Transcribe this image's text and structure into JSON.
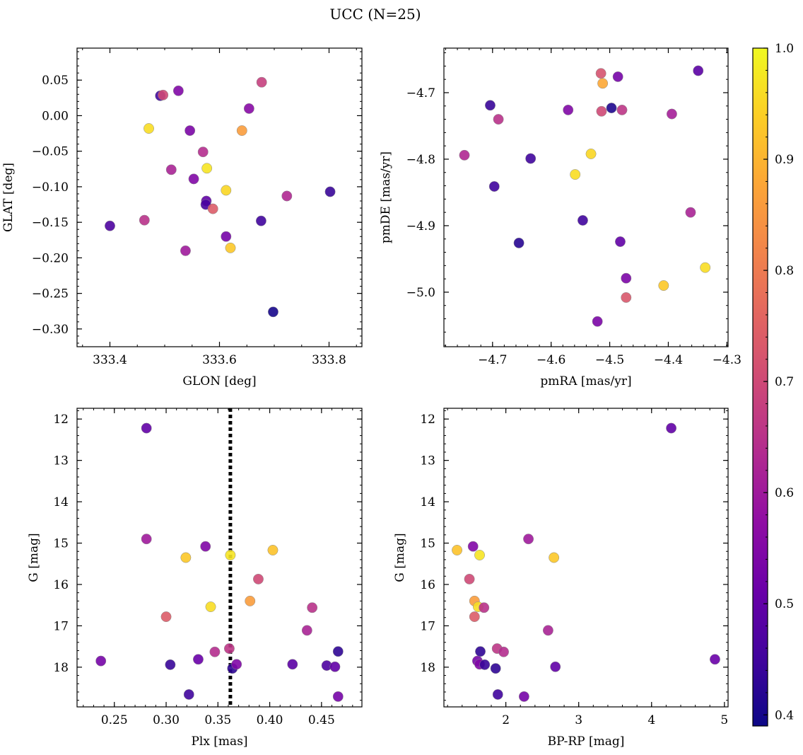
{
  "figure": {
    "title": "UCC (N=25)"
  },
  "colorbar": {
    "colormap": "plasma",
    "range": [
      0.39,
      1.0
    ],
    "ticks": [
      "0.4",
      "0.5",
      "0.6",
      "0.7",
      "0.8",
      "0.9",
      "1.0"
    ]
  },
  "chart_data": [
    {
      "type": "scatter",
      "panel": "top-left",
      "xlabel": "GLON [deg]",
      "ylabel": "GLAT [deg]",
      "xlim": [
        333.34,
        333.86
      ],
      "ylim": [
        -0.325,
        0.095
      ],
      "xticks": [
        333.4,
        333.6,
        333.8
      ],
      "xtick_labels": [
        "333.4",
        "333.6",
        "333.8"
      ],
      "yticks": [
        0.05,
        0.0,
        -0.05,
        -0.1,
        -0.15,
        -0.2,
        -0.25,
        -0.3
      ],
      "ytick_labels": [
        "0.05",
        "0.00",
        "−0.05",
        "−0.10",
        "−0.15",
        "−0.20",
        "−0.25",
        "−0.30"
      ],
      "points": [
        {
          "x": 333.4,
          "y": -0.155,
          "c": 0.47
        },
        {
          "x": 333.463,
          "y": -0.147,
          "c": 0.65
        },
        {
          "x": 333.471,
          "y": -0.018,
          "c": 0.96
        },
        {
          "x": 333.492,
          "y": 0.028,
          "c": 0.45
        },
        {
          "x": 333.497,
          "y": 0.029,
          "c": 0.7
        },
        {
          "x": 333.512,
          "y": -0.076,
          "c": 0.62
        },
        {
          "x": 333.525,
          "y": 0.035,
          "c": 0.55
        },
        {
          "x": 333.538,
          "y": -0.19,
          "c": 0.6
        },
        {
          "x": 333.546,
          "y": -0.021,
          "c": 0.54
        },
        {
          "x": 333.553,
          "y": -0.089,
          "c": 0.55
        },
        {
          "x": 333.57,
          "y": -0.051,
          "c": 0.64
        },
        {
          "x": 333.576,
          "y": -0.12,
          "c": 0.5
        },
        {
          "x": 333.575,
          "y": -0.125,
          "c": 0.46
        },
        {
          "x": 333.577,
          "y": -0.074,
          "c": 0.97
        },
        {
          "x": 333.588,
          "y": -0.131,
          "c": 0.74
        },
        {
          "x": 333.612,
          "y": -0.105,
          "c": 0.95
        },
        {
          "x": 333.612,
          "y": -0.17,
          "c": 0.53
        },
        {
          "x": 333.62,
          "y": -0.186,
          "c": 0.93
        },
        {
          "x": 333.641,
          "y": -0.021,
          "c": 0.86
        },
        {
          "x": 333.654,
          "y": 0.01,
          "c": 0.56
        },
        {
          "x": 333.676,
          "y": -0.148,
          "c": 0.45
        },
        {
          "x": 333.677,
          "y": 0.047,
          "c": 0.68
        },
        {
          "x": 333.698,
          "y": -0.276,
          "c": 0.4
        },
        {
          "x": 333.723,
          "y": -0.113,
          "c": 0.63
        },
        {
          "x": 333.802,
          "y": -0.107,
          "c": 0.44
        }
      ]
    },
    {
      "type": "scatter",
      "panel": "top-right",
      "xlabel": "pmRA [mas/yr]",
      "ylabel": "pmDE [mas/yr]",
      "xlim": [
        -4.783,
        -4.298
      ],
      "ylim": [
        -5.082,
        -4.633
      ],
      "xticks": [
        -4.7,
        -4.6,
        -4.5,
        -4.4,
        -4.3
      ],
      "xtick_labels": [
        "−4.7",
        "−4.6",
        "−4.5",
        "−4.4",
        "−4.3"
      ],
      "yticks": [
        -4.7,
        -4.8,
        -4.9,
        -5.0
      ],
      "ytick_labels": [
        "−4.7",
        "−4.8",
        "−4.9",
        "−5.0"
      ],
      "points": [
        {
          "x": -4.748,
          "y": -4.794,
          "c": 0.63
        },
        {
          "x": -4.704,
          "y": -4.719,
          "c": 0.44
        },
        {
          "x": -4.697,
          "y": -4.841,
          "c": 0.45
        },
        {
          "x": -4.69,
          "y": -4.74,
          "c": 0.65
        },
        {
          "x": -4.655,
          "y": -4.926,
          "c": 0.42
        },
        {
          "x": -4.635,
          "y": -4.799,
          "c": 0.45
        },
        {
          "x": -4.571,
          "y": -4.726,
          "c": 0.55
        },
        {
          "x": -4.559,
          "y": -4.823,
          "c": 0.96
        },
        {
          "x": -4.532,
          "y": -4.792,
          "c": 0.95
        },
        {
          "x": -4.521,
          "y": -5.044,
          "c": 0.54
        },
        {
          "x": -4.515,
          "y": -4.671,
          "c": 0.72
        },
        {
          "x": -4.514,
          "y": -4.728,
          "c": 0.7
        },
        {
          "x": -4.512,
          "y": -4.686,
          "c": 0.88
        },
        {
          "x": -4.497,
          "y": -4.723,
          "c": 0.41
        },
        {
          "x": -4.546,
          "y": -4.892,
          "c": 0.45
        },
        {
          "x": -4.486,
          "y": -4.676,
          "c": 0.53
        },
        {
          "x": -4.482,
          "y": -4.924,
          "c": 0.5
        },
        {
          "x": -4.479,
          "y": -4.726,
          "c": 0.66
        },
        {
          "x": -4.472,
          "y": -4.979,
          "c": 0.54
        },
        {
          "x": -4.472,
          "y": -5.008,
          "c": 0.73
        },
        {
          "x": -4.408,
          "y": -4.99,
          "c": 0.93
        },
        {
          "x": -4.394,
          "y": -4.732,
          "c": 0.61
        },
        {
          "x": -4.362,
          "y": -4.88,
          "c": 0.62
        },
        {
          "x": -4.349,
          "y": -4.667,
          "c": 0.49
        },
        {
          "x": -4.337,
          "y": -4.963,
          "c": 0.96
        }
      ]
    },
    {
      "type": "scatter",
      "panel": "bottom-left",
      "xlabel": "Plx [mas]",
      "ylabel": "G [mag]",
      "xlim": [
        0.214,
        0.489
      ],
      "ylim": [
        18.96,
        11.74
      ],
      "invert_y": true,
      "xticks": [
        0.25,
        0.3,
        0.35,
        0.4,
        0.45
      ],
      "xtick_labels": [
        "0.25",
        "0.30",
        "0.35",
        "0.40",
        "0.45"
      ],
      "yticks": [
        12,
        13,
        14,
        15,
        16,
        17,
        18
      ],
      "ytick_labels": [
        "12",
        "13",
        "14",
        "15",
        "16",
        "17",
        "18"
      ],
      "vline": {
        "x": 0.362,
        "style": "dotted",
        "color": "#000000"
      },
      "points": [
        {
          "x": 0.237,
          "y": 17.85,
          "c": 0.53
        },
        {
          "x": 0.281,
          "y": 12.22,
          "c": 0.5
        },
        {
          "x": 0.281,
          "y": 14.9,
          "c": 0.6
        },
        {
          "x": 0.3,
          "y": 16.78,
          "c": 0.74
        },
        {
          "x": 0.304,
          "y": 17.94,
          "c": 0.44
        },
        {
          "x": 0.319,
          "y": 15.35,
          "c": 0.93
        },
        {
          "x": 0.322,
          "y": 18.66,
          "c": 0.45
        },
        {
          "x": 0.331,
          "y": 17.81,
          "c": 0.51
        },
        {
          "x": 0.338,
          "y": 15.08,
          "c": 0.55
        },
        {
          "x": 0.343,
          "y": 16.54,
          "c": 0.96
        },
        {
          "x": 0.347,
          "y": 17.63,
          "c": 0.64
        },
        {
          "x": 0.361,
          "y": 17.55,
          "c": 0.66
        },
        {
          "x": 0.362,
          "y": 15.29,
          "c": 0.97
        },
        {
          "x": 0.364,
          "y": 18.03,
          "c": 0.43
        },
        {
          "x": 0.368,
          "y": 17.93,
          "c": 0.55
        },
        {
          "x": 0.381,
          "y": 16.4,
          "c": 0.86
        },
        {
          "x": 0.389,
          "y": 15.87,
          "c": 0.7
        },
        {
          "x": 0.403,
          "y": 15.17,
          "c": 0.92
        },
        {
          "x": 0.422,
          "y": 17.93,
          "c": 0.49
        },
        {
          "x": 0.436,
          "y": 17.11,
          "c": 0.62
        },
        {
          "x": 0.441,
          "y": 16.56,
          "c": 0.65
        },
        {
          "x": 0.455,
          "y": 17.96,
          "c": 0.47
        },
        {
          "x": 0.463,
          "y": 17.99,
          "c": 0.5
        },
        {
          "x": 0.466,
          "y": 17.62,
          "c": 0.43
        },
        {
          "x": 0.466,
          "y": 18.71,
          "c": 0.53
        }
      ]
    },
    {
      "type": "scatter",
      "panel": "bottom-right",
      "xlabel": "BP-RP [mag]",
      "ylabel": "G [mag]",
      "xlim": [
        1.15,
        5.05
      ],
      "ylim": [
        18.96,
        11.74
      ],
      "invert_y": true,
      "xticks": [
        2,
        3,
        4,
        5
      ],
      "xtick_labels": [
        "2",
        "3",
        "4",
        "5"
      ],
      "yticks": [
        12,
        13,
        14,
        15,
        16,
        17,
        18
      ],
      "ytick_labels": [
        "12",
        "13",
        "14",
        "15",
        "16",
        "17",
        "18"
      ],
      "points": [
        {
          "x": 1.33,
          "y": 15.17,
          "c": 0.92
        },
        {
          "x": 1.5,
          "y": 15.87,
          "c": 0.7
        },
        {
          "x": 1.55,
          "y": 15.08,
          "c": 0.55
        },
        {
          "x": 1.57,
          "y": 16.4,
          "c": 0.86
        },
        {
          "x": 1.57,
          "y": 16.78,
          "c": 0.74
        },
        {
          "x": 1.61,
          "y": 17.85,
          "c": 0.53
        },
        {
          "x": 1.62,
          "y": 16.54,
          "c": 0.96
        },
        {
          "x": 1.64,
          "y": 15.29,
          "c": 0.97
        },
        {
          "x": 1.64,
          "y": 17.93,
          "c": 0.55
        },
        {
          "x": 1.65,
          "y": 17.62,
          "c": 0.43
        },
        {
          "x": 1.7,
          "y": 16.56,
          "c": 0.65
        },
        {
          "x": 1.71,
          "y": 17.94,
          "c": 0.44
        },
        {
          "x": 1.86,
          "y": 18.03,
          "c": 0.43
        },
        {
          "x": 1.88,
          "y": 17.55,
          "c": 0.66
        },
        {
          "x": 1.89,
          "y": 18.66,
          "c": 0.45
        },
        {
          "x": 1.97,
          "y": 17.63,
          "c": 0.64
        },
        {
          "x": 2.25,
          "y": 18.71,
          "c": 0.53
        },
        {
          "x": 2.31,
          "y": 14.9,
          "c": 0.6
        },
        {
          "x": 2.58,
          "y": 17.11,
          "c": 0.62
        },
        {
          "x": 2.66,
          "y": 15.35,
          "c": 0.93
        },
        {
          "x": 2.68,
          "y": 17.99,
          "c": 0.5
        },
        {
          "x": 4.27,
          "y": 12.22,
          "c": 0.5
        },
        {
          "x": 4.87,
          "y": 17.81,
          "c": 0.51
        }
      ]
    }
  ]
}
